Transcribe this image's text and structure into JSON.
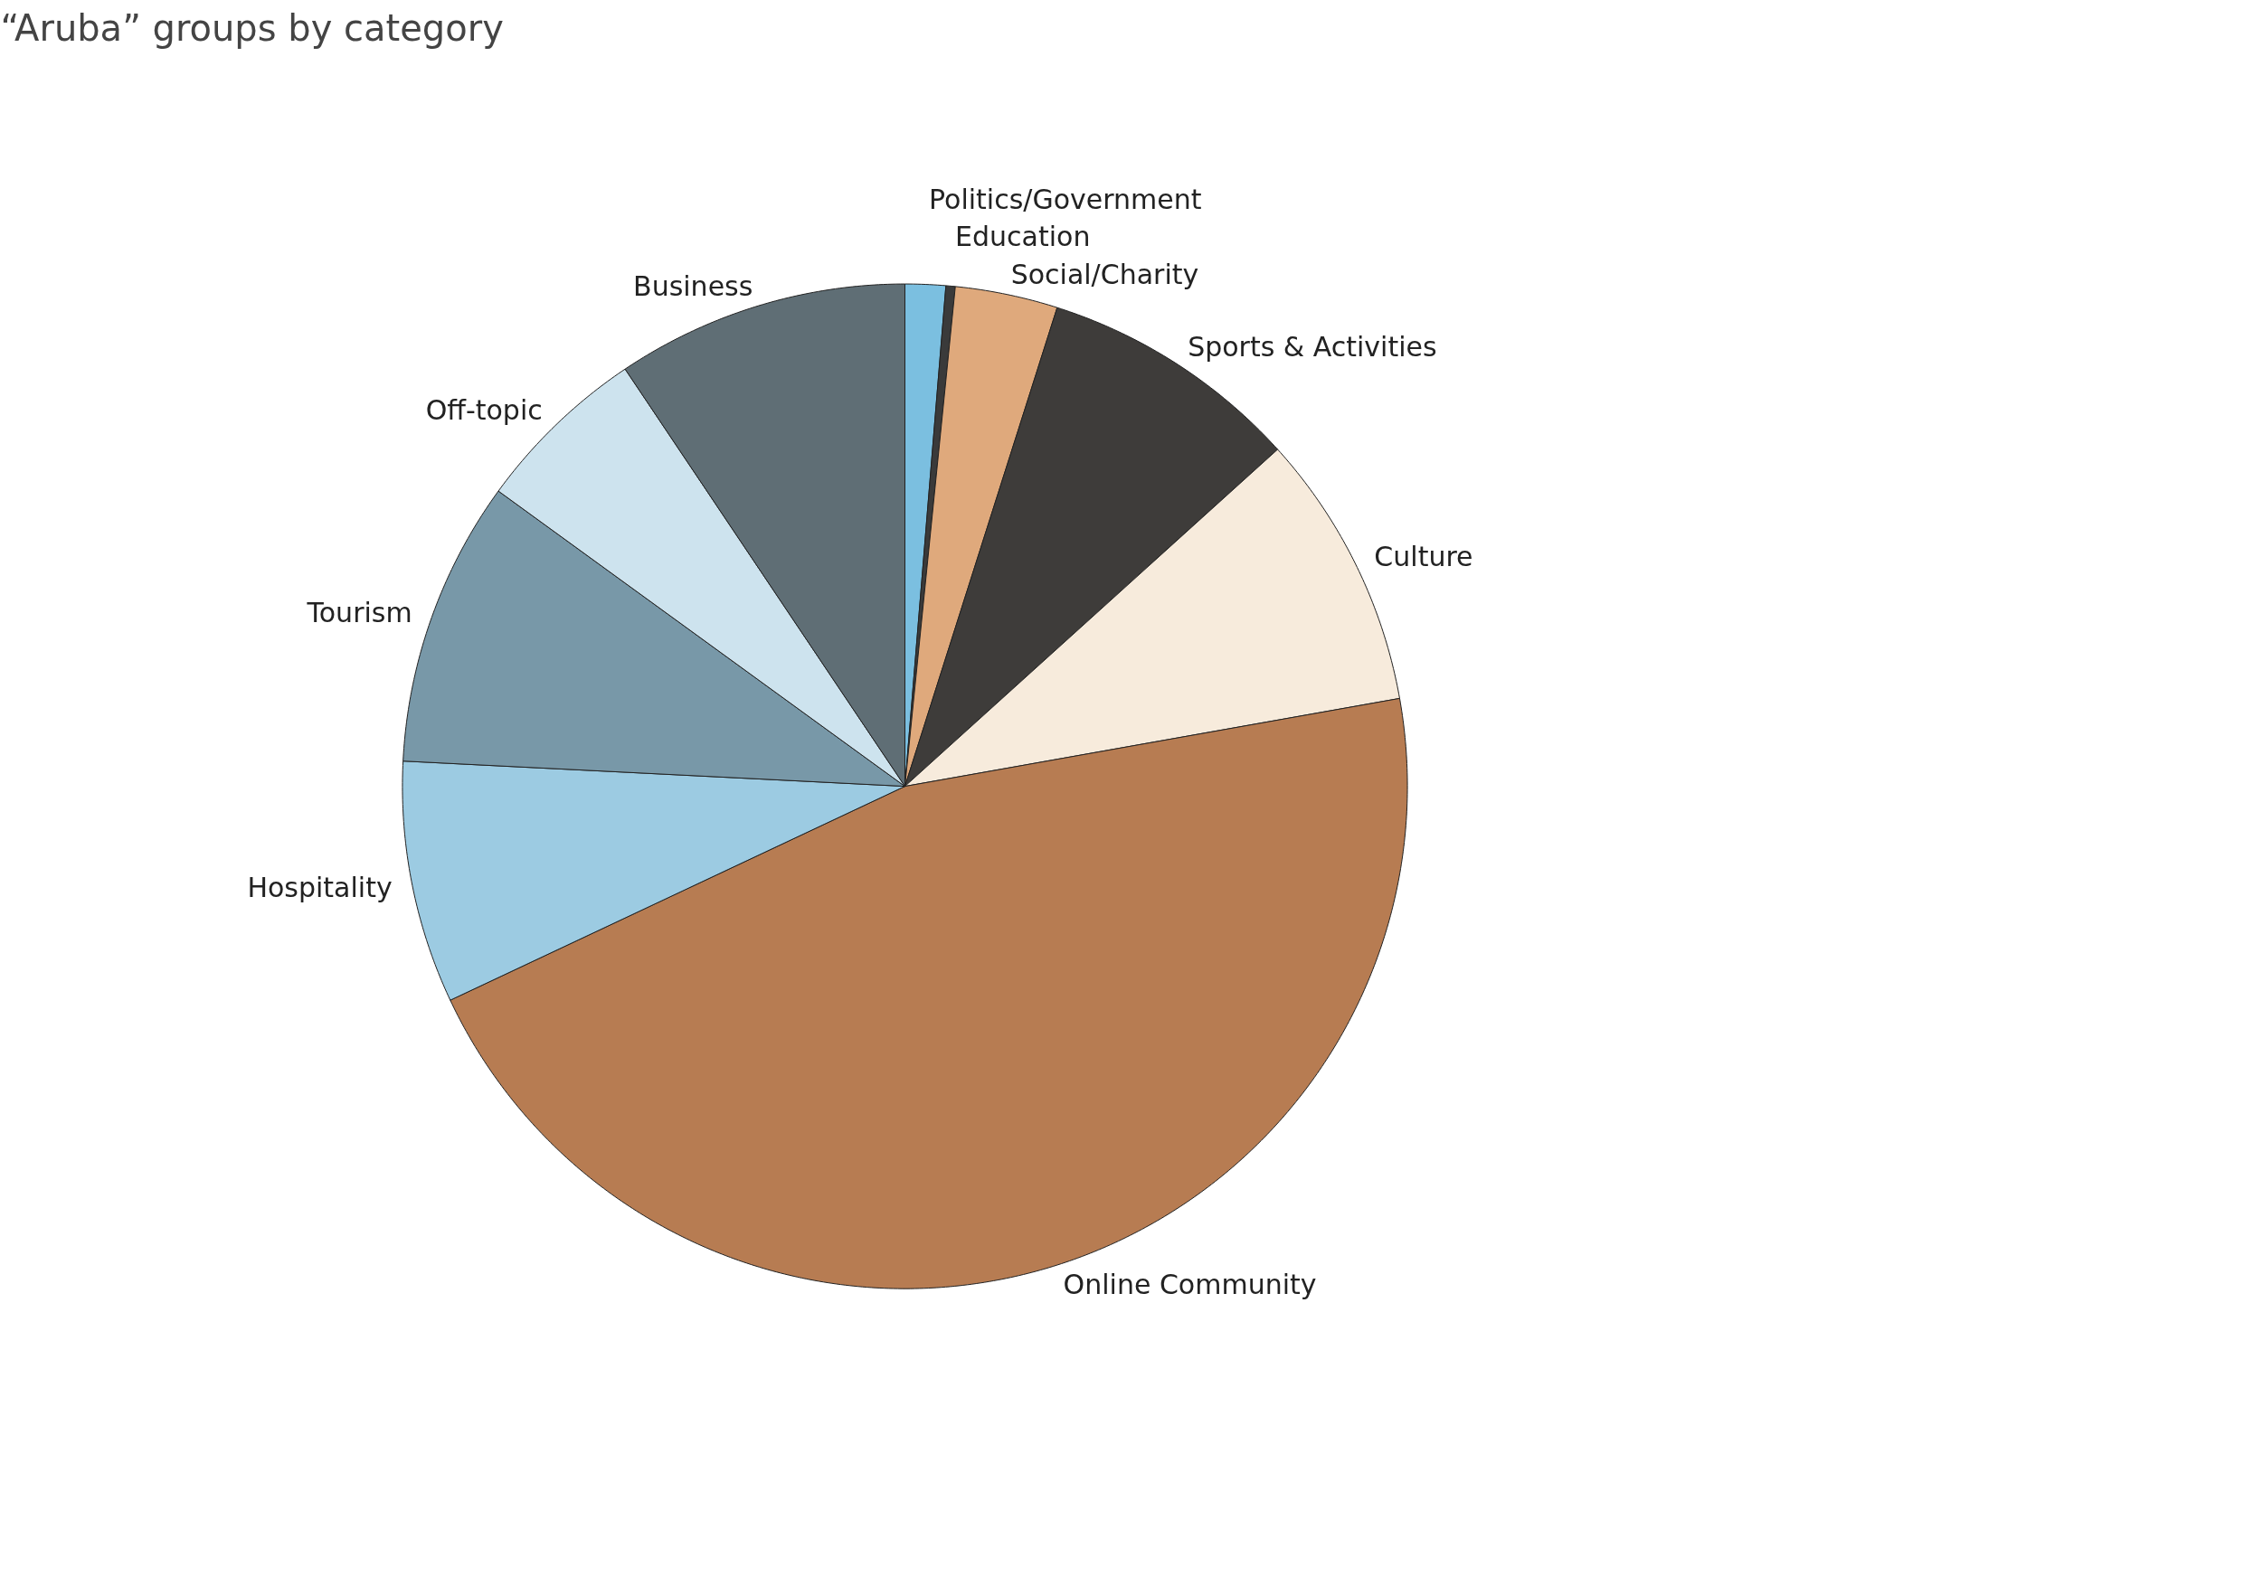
{
  "chart_data": {
    "type": "pie",
    "title": "“Aruba” groups by category",
    "categories": [
      "Politics/Government",
      "Education",
      "Social/Charity",
      "Sports & Activities",
      "Culture",
      "Online Community",
      "Hospitality",
      "Tourism",
      "Off-topic",
      "Business"
    ],
    "values": [
      1.3,
      0.3,
      3.3,
      8.4,
      8.9,
      45.8,
      7.8,
      9.2,
      5.6,
      9.4
    ],
    "colors": [
      "#7bbfe0",
      "#3a3a3a",
      "#dfa97c",
      "#3e3c3a",
      "#f7ebdc",
      "#b77c52",
      "#9ccbe2",
      "#7898a8",
      "#cde3ee",
      "#5f6e75"
    ],
    "legend": false
  }
}
